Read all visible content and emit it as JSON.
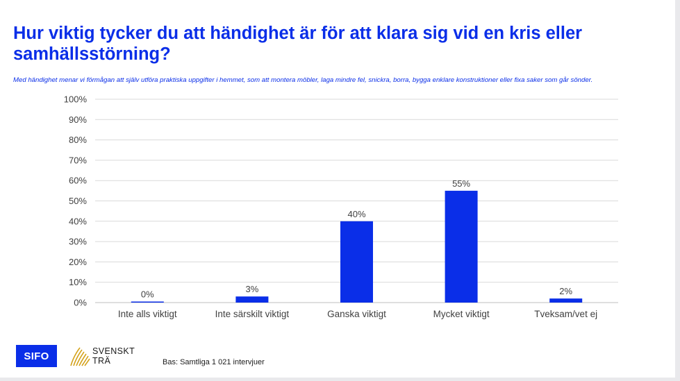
{
  "header": {
    "title": "Hur viktig tycker du att händighet är för att klara sig vid en kris eller samhällsstörning?",
    "subtitle": "Med händighet menar vi förmågan att själv utföra praktiska uppgifter i hemmet, som att montera möbler, laga mindre fel, snickra, borra, bygga enklare konstruktioner eller fixa saker som går sönder."
  },
  "chart_data": {
    "type": "bar",
    "categories": [
      "Inte alls viktigt",
      "Inte särskilt viktigt",
      "Ganska viktigt",
      "Mycket viktigt",
      "Tveksam/vet ej"
    ],
    "values": [
      0,
      3,
      40,
      55,
      2
    ],
    "data_labels": [
      "0%",
      "3%",
      "40%",
      "55%",
      "2%"
    ],
    "ylim": [
      0,
      100
    ],
    "y_ticks": [
      "0%",
      "10%",
      "20%",
      "30%",
      "40%",
      "50%",
      "60%",
      "70%",
      "80%",
      "90%",
      "100%"
    ],
    "grid": true,
    "legend": "none",
    "bar_color": "#0a2ee8"
  },
  "footer": {
    "logo_sifo": "SIFO",
    "logo_svenskt_tra": [
      "SVENSKT",
      "TRÄ"
    ],
    "base_note": "Bas: Samtliga 1 021 intervjuer"
  },
  "colors": {
    "accent": "#0a2ee8",
    "text": "#404040",
    "grid": "#d9d9d9"
  }
}
